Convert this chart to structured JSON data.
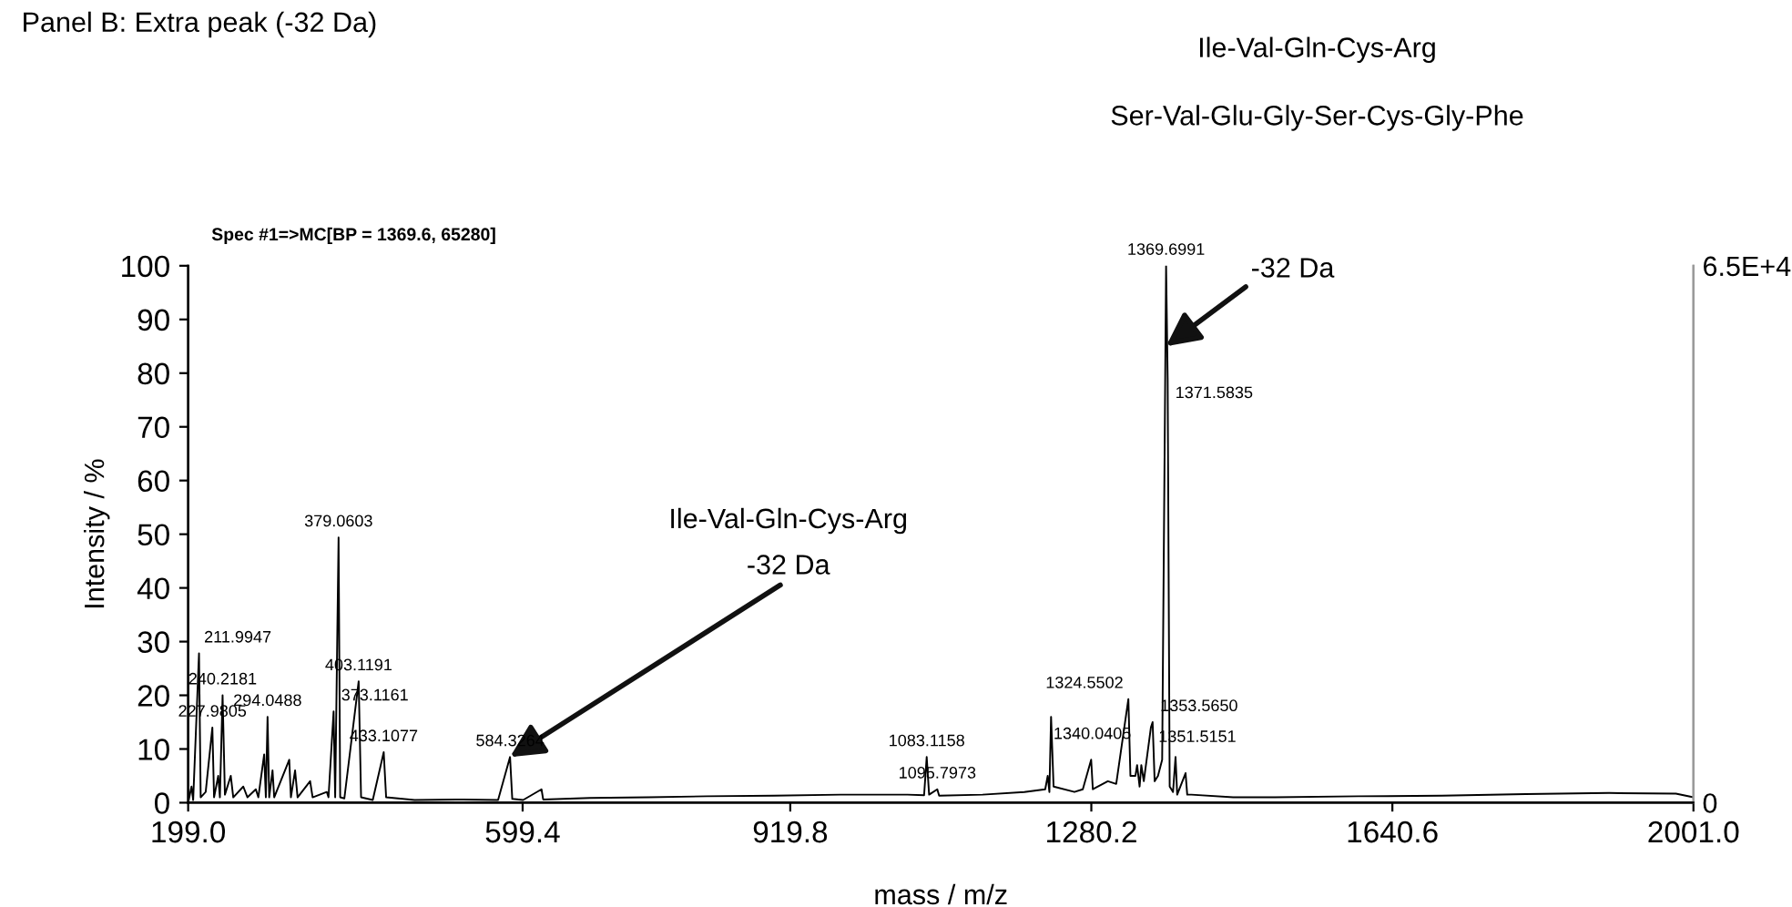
{
  "chart_data": {
    "type": "line",
    "title": "Panel B: Extra peak (-32 Da)",
    "subtitle": "Spec #1=>MC[BP = 1369.6, 65280]",
    "xlabel": "mass / m/z",
    "ylabel": "Intensity / %",
    "x": [
      199,
      203,
      205,
      211.9947,
      214,
      220,
      227.9805,
      230,
      235,
      237,
      240.2181,
      243,
      250,
      253,
      265,
      270,
      280,
      283,
      290,
      292,
      294.0488,
      296,
      300,
      302,
      320,
      322,
      327,
      330,
      345,
      348,
      365,
      367,
      373.1161,
      375,
      379.0603,
      381,
      386,
      403.1191,
      406,
      420,
      433.1077,
      436,
      470,
      520,
      570,
      584.3264,
      587,
      600,
      622,
      624,
      680,
      750,
      820,
      900,
      980,
      1060,
      1080,
      1083.1158,
      1086,
      1095.7973,
      1098,
      1150,
      1200,
      1225,
      1228,
      1230,
      1232,
      1235,
      1260,
      1270,
      1280,
      1282,
      1300,
      1310,
      1324.5502,
      1327,
      1333,
      1335,
      1338,
      1340.0405,
      1343,
      1351.5151,
      1353.565,
      1356,
      1360,
      1365,
      1369.6991,
      1371.5835,
      1374,
      1378,
      1381,
      1383,
      1393,
      1395,
      1400,
      1450,
      1500,
      1600,
      1700,
      1800,
      1900,
      1980,
      2001
    ],
    "series": [
      {
        "color": "#000000",
        "values": [
          0,
          3,
          0.5,
          27.8,
          1,
          2,
          14,
          1,
          5,
          1,
          20,
          1.5,
          5,
          1,
          3,
          1,
          2.5,
          1,
          9,
          1,
          16,
          1,
          6,
          1,
          8,
          1,
          6,
          1,
          4,
          1,
          2,
          1,
          17,
          1,
          49.4,
          1,
          0.8,
          22.6,
          1,
          0.5,
          9.4,
          1,
          0.5,
          0.6,
          0.5,
          8.5,
          0.7,
          0.5,
          2.5,
          0.6,
          0.9,
          1.0,
          1.2,
          1.3,
          1.5,
          1.5,
          1.4,
          8.5,
          1.5,
          2.5,
          1.3,
          1.5,
          2,
          2.5,
          5,
          2,
          16,
          3,
          2,
          2.5,
          8,
          2.5,
          4,
          3.5,
          19.3,
          5,
          5,
          7,
          3,
          7,
          4,
          14,
          15,
          4,
          5,
          8,
          100,
          79,
          3,
          2,
          8.5,
          1.5,
          5.5,
          1.5,
          1.5,
          1,
          1,
          1.2,
          1.3,
          1.6,
          1.8,
          1.7,
          1
        ]
      }
    ],
    "xlim": [
      199,
      2001
    ],
    "xticks": [
      {
        "value": 199,
        "label": "199.0"
      },
      599.4,
      919.8,
      1280.2,
      1640.6,
      {
        "value": 2001,
        "label": "2001.0"
      }
    ],
    "ylim": [
      0,
      100
    ],
    "yticks": [
      0,
      10,
      20,
      30,
      40,
      50,
      60,
      70,
      80,
      90,
      100
    ],
    "y2lim": [
      0,
      65280
    ],
    "y2ticks": [
      0,
      {
        "value": 65280,
        "label": "6.5E+4"
      }
    ],
    "grid": false,
    "legend": false,
    "annotations": [
      {
        "text": "Ile-Val-Gln-Cys-Arg\n-32 Da",
        "x": 584.3264,
        "y": 8.5
      },
      {
        "text": "-32 Da",
        "x": 1369.6991,
        "y": 85
      },
      "Ile-Val-Gln-Cys-Arg",
      "Ser-Val-Glu-Gly-Ser-Cys-Gly-Phe",
      {
        "text": "211.9947",
        "x": 211.9947,
        "y": 27.8
      },
      {
        "text": "240.2181",
        "x": 240.2181,
        "y": 20
      },
      {
        "text": "227.9805",
        "x": 227.9805,
        "y": 14
      },
      {
        "text": "294.0488",
        "x": 294.0488,
        "y": 16
      },
      {
        "text": "379.0603",
        "x": 379.0603,
        "y": 49.4
      },
      {
        "text": "403.1191",
        "x": 403.1191,
        "y": 22.6
      },
      {
        "text": "373.1161",
        "x": 373.1161,
        "y": 17
      },
      {
        "text": "433.1077",
        "x": 433.1077,
        "y": 9.4
      },
      {
        "text": "584.3264",
        "x": 584.3264,
        "y": 8.5
      },
      {
        "text": "1083.1158",
        "x": 1083.1158,
        "y": 8.5
      },
      {
        "text": "1095.7973",
        "x": 1095.7973,
        "y": 2.5
      },
      {
        "text": "1324.5502",
        "x": 1324.5502,
        "y": 19.3
      },
      {
        "text": "1353.5650",
        "x": 1353.565,
        "y": 15
      },
      {
        "text": "1351.5151",
        "x": 1351.5151,
        "y": 14
      },
      {
        "text": "1340.0405",
        "x": 1340.0405,
        "y": 7
      },
      {
        "text": "1369.6991",
        "x": 1369.6991,
        "y": 100
      },
      {
        "text": "1371.5835",
        "x": 1371.5835,
        "y": 79
      }
    ]
  }
}
